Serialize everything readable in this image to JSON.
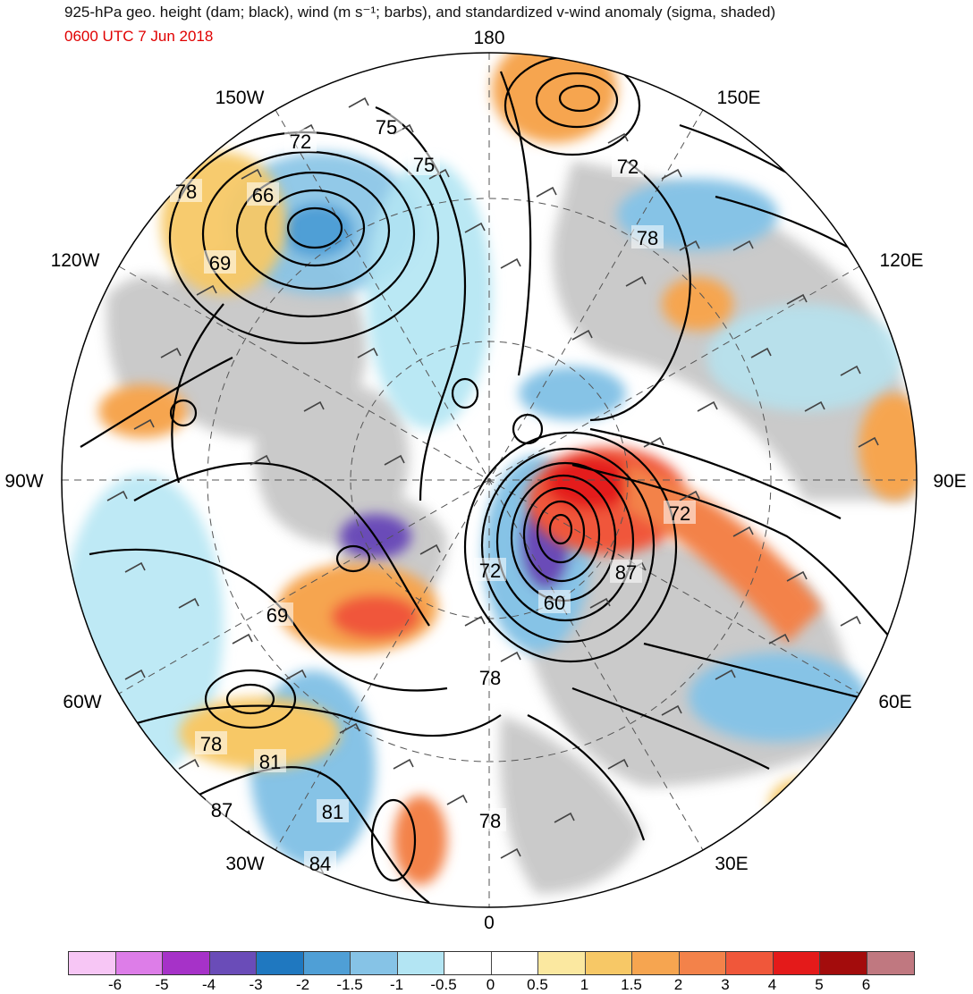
{
  "title": {
    "line1": "925-hPa geo. height (dam; black), wind (m s⁻¹; barbs), and standardized v-wind anomaly (sigma, shaded)",
    "line2": "0600 UTC 7 Jun 2018"
  },
  "colors": {
    "title": "#111111",
    "subtitle": "#e00000",
    "land": "#c8c8c8"
  },
  "longitude_labels": [
    {
      "text": "180",
      "lon": 180
    },
    {
      "text": "150E",
      "lon": 150
    },
    {
      "text": "120E",
      "lon": 120
    },
    {
      "text": "90E",
      "lon": 90
    },
    {
      "text": "60E",
      "lon": 60
    },
    {
      "text": "30E",
      "lon": 30
    },
    {
      "text": "0",
      "lon": 0
    },
    {
      "text": "30W",
      "lon": -30
    },
    {
      "text": "60W",
      "lon": -60
    },
    {
      "text": "90W",
      "lon": -90
    },
    {
      "text": "120W",
      "lon": -120
    },
    {
      "text": "150W",
      "lon": -150
    }
  ],
  "contour_labels": [
    {
      "text": "75"
    },
    {
      "text": "72"
    },
    {
      "text": "75"
    },
    {
      "text": "66"
    },
    {
      "text": "78"
    },
    {
      "text": "69"
    },
    {
      "text": "72"
    },
    {
      "text": "78"
    },
    {
      "text": "72"
    },
    {
      "text": "72"
    },
    {
      "text": "60"
    },
    {
      "text": "87"
    },
    {
      "text": "69"
    },
    {
      "text": "78"
    },
    {
      "text": "78"
    },
    {
      "text": "81"
    },
    {
      "text": "87"
    },
    {
      "text": "81"
    },
    {
      "text": "84"
    },
    {
      "text": "78"
    }
  ],
  "colorbar": {
    "colors": [
      "#f7c6f5",
      "#dd7de8",
      "#a632c8",
      "#6a4cb8",
      "#1f78c0",
      "#4f9fd6",
      "#86c3e6",
      "#b3e5f3",
      "#ffffff",
      "#ffffff",
      "#fbe8a0",
      "#f7c866",
      "#f6a550",
      "#f3824a",
      "#f0573a",
      "#e41a1a",
      "#a30c0c",
      "#c07880"
    ],
    "ticks": [
      "-6",
      "-5",
      "-4",
      "-3",
      "-2",
      "-1.5",
      "-1",
      "-0.5",
      "0",
      "0.5",
      "1",
      "1.5",
      "2",
      "3",
      "4",
      "5",
      "6"
    ]
  }
}
